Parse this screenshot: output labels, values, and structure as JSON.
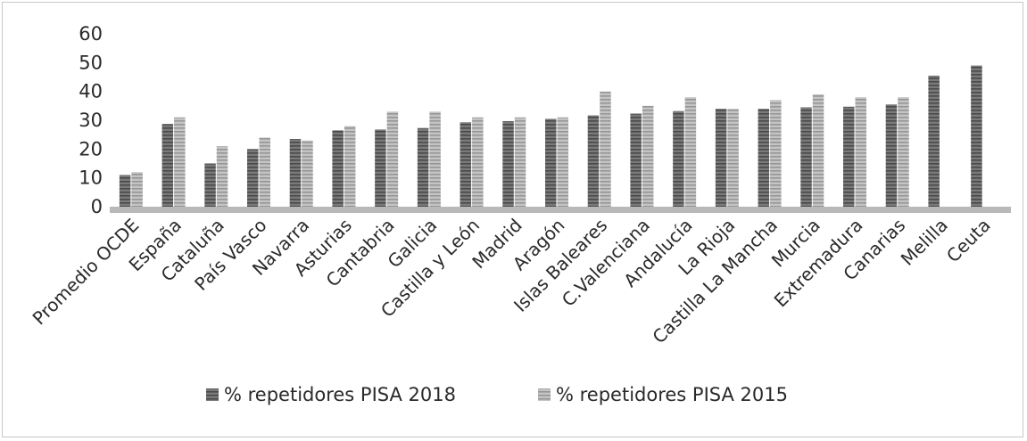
{
  "chart_data": {
    "type": "bar",
    "title": "",
    "xlabel": "",
    "ylabel": "",
    "ylim": [
      0,
      60
    ],
    "yticks": [
      0,
      10,
      20,
      30,
      40,
      50,
      60
    ],
    "grid": false,
    "legend_position": "bottom",
    "categories": [
      "Promedio OCDE",
      "España",
      "Cataluña",
      "País Vasco",
      "Navarra",
      "Asturias",
      "Cantabria",
      "Galicia",
      "Castilla y León",
      "Madrid",
      "Aragón",
      "Islas Baleares",
      "C.Valenciana",
      "Andalucía",
      "La Rioja",
      "Castilla La Mancha",
      "Murcia",
      "Extremadura",
      "Canarias",
      "Melilla",
      "Ceuta"
    ],
    "series": [
      {
        "name": "% repetidores PISA 2018",
        "color": "#6e6e6e",
        "values": [
          11,
          28.7,
          15,
          20,
          23.5,
          26.5,
          26.8,
          27.3,
          29.3,
          29.7,
          30.5,
          31.7,
          32.3,
          33.2,
          34,
          34,
          34.5,
          34.7,
          35.5,
          45.5,
          49
        ]
      },
      {
        "name": "% repetidores PISA 2015",
        "color": "#b0b0b0",
        "values": [
          12,
          31,
          21,
          24,
          23,
          28,
          33,
          33,
          31,
          31,
          31,
          40,
          35,
          38,
          34,
          37,
          39,
          38,
          38,
          null,
          null
        ]
      }
    ]
  }
}
